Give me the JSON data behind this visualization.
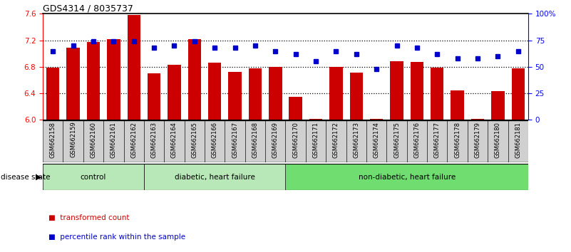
{
  "title": "GDS4314 / 8035737",
  "samples": [
    "GSM662158",
    "GSM662159",
    "GSM662160",
    "GSM662161",
    "GSM662162",
    "GSM662163",
    "GSM662164",
    "GSM662165",
    "GSM662166",
    "GSM662167",
    "GSM662168",
    "GSM662169",
    "GSM662170",
    "GSM662171",
    "GSM662172",
    "GSM662173",
    "GSM662174",
    "GSM662175",
    "GSM662176",
    "GSM662177",
    "GSM662178",
    "GSM662179",
    "GSM662180",
    "GSM662181"
  ],
  "bar_values": [
    6.79,
    7.09,
    7.17,
    7.22,
    7.58,
    6.7,
    6.83,
    7.22,
    6.86,
    6.72,
    6.78,
    6.8,
    6.35,
    6.01,
    6.8,
    6.71,
    6.01,
    6.88,
    6.87,
    6.79,
    6.44,
    6.01,
    6.43,
    6.78
  ],
  "percentile_values": [
    65,
    70,
    74,
    74,
    74,
    68,
    70,
    74,
    68,
    68,
    70,
    65,
    62,
    55,
    65,
    62,
    48,
    70,
    68,
    62,
    58,
    58,
    60,
    65
  ],
  "ylim_left": [
    6.0,
    7.6
  ],
  "ylim_right": [
    0,
    100
  ],
  "yticks_left": [
    6.0,
    6.4,
    6.8,
    7.2,
    7.6
  ],
  "yticks_right": [
    0,
    25,
    50,
    75,
    100
  ],
  "ytick_labels_right": [
    "0",
    "25",
    "50",
    "75",
    "100%"
  ],
  "bar_color": "#CC0000",
  "dot_color": "#0000CC",
  "bar_width": 0.65,
  "legend_bar_label": "transformed count",
  "legend_dot_label": "percentile rank within the sample",
  "disease_state_label": "disease state",
  "group_labels": [
    "control",
    "diabetic, heart failure",
    "non-diabetic, heart failure"
  ],
  "group_starts": [
    0,
    5,
    12
  ],
  "group_ends": [
    5,
    12,
    24
  ],
  "group_colors": [
    "#b8e8b8",
    "#b8e8b8",
    "#70dd70"
  ],
  "xtick_bg_color": "#d0d0d0",
  "dotted_line_color": "black",
  "top_spine_color": "black",
  "left_spine_color": "red",
  "right_spine_color": "blue"
}
